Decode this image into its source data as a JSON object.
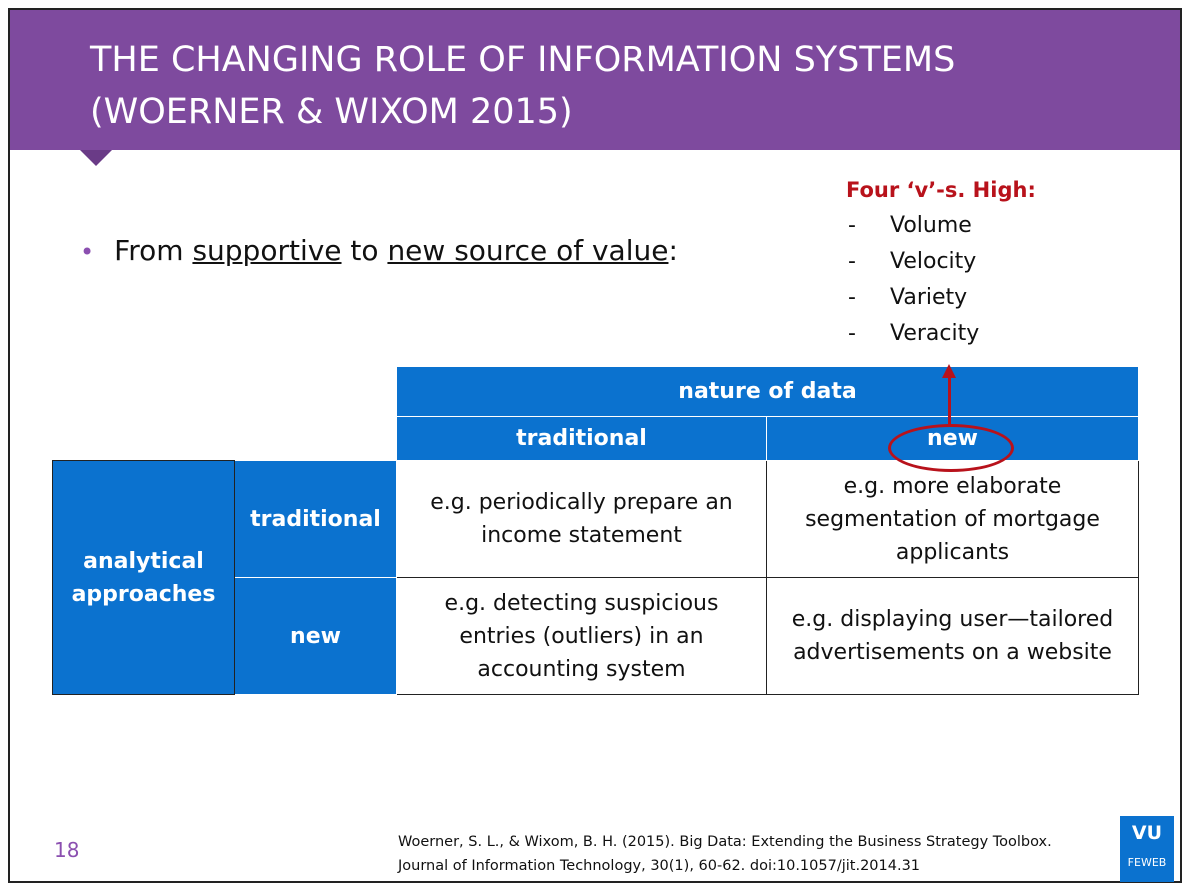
{
  "title": {
    "line1": "THE CHANGING ROLE OF INFORMATION SYSTEMS",
    "line2": "(WOERNER & WIXOM 2015)"
  },
  "bullet": {
    "prefix": "From ",
    "underline1": "supportive",
    "middle": " to ",
    "underline2": "new source of value",
    "suffix": ":"
  },
  "four_vs": {
    "heading": "Four ‘v’-s. High:",
    "items": [
      "Volume",
      "Velocity",
      "Variety",
      "Veracity"
    ]
  },
  "table": {
    "top_header": "nature of data",
    "col_headers": [
      "traditional",
      "new"
    ],
    "row_group": "analytical approaches",
    "row_headers": [
      "traditional",
      "new"
    ],
    "cells": [
      [
        "e.g. periodically prepare an income statement",
        "e.g. more elaborate segmentation of mortgage applicants"
      ],
      [
        "e.g. detecting suspicious entries (outliers) in an accounting system",
        "e.g. displaying user—tailored advertisements on a website"
      ]
    ]
  },
  "footer": {
    "page_number": "18",
    "citation_line1": "Woerner, S. L., & Wixom, B. H. (2015). Big Data: Extending the Business Strategy Toolbox.",
    "citation_line2": "Journal of Information Technology, 30(1), 60-62. doi:10.1057/jit.2014.31",
    "logo_top": "VU",
    "logo_bottom": "FEWEB"
  },
  "colors": {
    "title_bar": "#7e4a9e",
    "table_blue": "#0b72cf",
    "highlight_red": "#b8121b"
  }
}
